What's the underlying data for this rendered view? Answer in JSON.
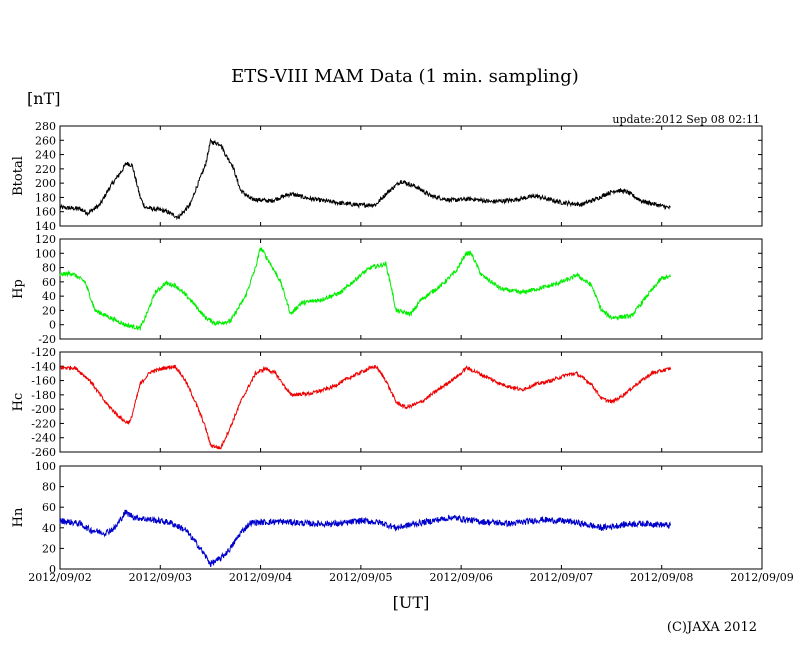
{
  "chart_data": {
    "type": "line",
    "title": "ETS-VIII MAM Data (1 min. sampling)",
    "yunit": "[nT]",
    "update": "update:2012 Sep 08 02:11",
    "xlabel": "[UT]",
    "copyright": "(C)JAXA 2012",
    "x_ticks": [
      "2012/09/02",
      "2012/09/03",
      "2012/09/04",
      "2012/09/05",
      "2012/09/06",
      "2012/09/07",
      "2012/09/08",
      "2012/09/09"
    ],
    "xlim_days": [
      0,
      7
    ],
    "data_end_day": 6.09,
    "panels": [
      {
        "name": "Btotal",
        "color": "#000000",
        "ylim": [
          140,
          280
        ],
        "y_ticks": [
          140,
          160,
          180,
          200,
          220,
          240,
          260,
          280
        ],
        "noise": 3,
        "points": [
          [
            0,
            166
          ],
          [
            0.2,
            164
          ],
          [
            0.28,
            158
          ],
          [
            0.4,
            170
          ],
          [
            0.5,
            195
          ],
          [
            0.62,
            218
          ],
          [
            0.66,
            228
          ],
          [
            0.72,
            225
          ],
          [
            0.8,
            180
          ],
          [
            0.85,
            166
          ],
          [
            1.05,
            161
          ],
          [
            1.18,
            152
          ],
          [
            1.3,
            170
          ],
          [
            1.35,
            190
          ],
          [
            1.45,
            225
          ],
          [
            1.5,
            258
          ],
          [
            1.6,
            255
          ],
          [
            1.65,
            240
          ],
          [
            1.72,
            225
          ],
          [
            1.8,
            190
          ],
          [
            1.9,
            178
          ],
          [
            2.1,
            175
          ],
          [
            2.3,
            185
          ],
          [
            2.5,
            178
          ],
          [
            2.8,
            172
          ],
          [
            3.0,
            169
          ],
          [
            3.15,
            170
          ],
          [
            3.25,
            185
          ],
          [
            3.4,
            203
          ],
          [
            3.55,
            195
          ],
          [
            3.7,
            182
          ],
          [
            3.9,
            176
          ],
          [
            4.1,
            178
          ],
          [
            4.3,
            174
          ],
          [
            4.5,
            176
          ],
          [
            4.7,
            181
          ],
          [
            4.75,
            182
          ],
          [
            4.85,
            178
          ],
          [
            5.0,
            173
          ],
          [
            5.2,
            170
          ],
          [
            5.35,
            178
          ],
          [
            5.45,
            185
          ],
          [
            5.55,
            190
          ],
          [
            5.65,
            188
          ],
          [
            5.8,
            175
          ],
          [
            6.0,
            168
          ],
          [
            6.09,
            165
          ]
        ]
      },
      {
        "name": "Hp",
        "color": "#00ee00",
        "ylim": [
          -20,
          120
        ],
        "y_ticks": [
          -20,
          0,
          20,
          40,
          60,
          80,
          100,
          120
        ],
        "noise": 3,
        "points": [
          [
            0,
            70
          ],
          [
            0.12,
            72
          ],
          [
            0.25,
            60
          ],
          [
            0.35,
            20
          ],
          [
            0.5,
            10
          ],
          [
            0.65,
            0
          ],
          [
            0.8,
            -5
          ],
          [
            0.85,
            10
          ],
          [
            0.95,
            45
          ],
          [
            1.05,
            58
          ],
          [
            1.15,
            55
          ],
          [
            1.3,
            35
          ],
          [
            1.45,
            10
          ],
          [
            1.55,
            2
          ],
          [
            1.7,
            5
          ],
          [
            1.85,
            40
          ],
          [
            1.95,
            80
          ],
          [
            2.0,
            108
          ],
          [
            2.1,
            85
          ],
          [
            2.2,
            60
          ],
          [
            2.3,
            15
          ],
          [
            2.4,
            30
          ],
          [
            2.6,
            35
          ],
          [
            2.8,
            45
          ],
          [
            3.0,
            70
          ],
          [
            3.1,
            80
          ],
          [
            3.25,
            85
          ],
          [
            3.3,
            55
          ],
          [
            3.35,
            20
          ],
          [
            3.5,
            15
          ],
          [
            3.6,
            35
          ],
          [
            3.8,
            55
          ],
          [
            3.95,
            75
          ],
          [
            4.05,
            100
          ],
          [
            4.1,
            100
          ],
          [
            4.2,
            70
          ],
          [
            4.4,
            50
          ],
          [
            4.6,
            45
          ],
          [
            4.9,
            55
          ],
          [
            5.1,
            65
          ],
          [
            5.15,
            70
          ],
          [
            5.3,
            55
          ],
          [
            5.4,
            20
          ],
          [
            5.5,
            10
          ],
          [
            5.7,
            12
          ],
          [
            5.85,
            40
          ],
          [
            6.0,
            65
          ],
          [
            6.09,
            67
          ]
        ]
      },
      {
        "name": "Hc",
        "color": "#ee0000",
        "ylim": [
          -260,
          -120
        ],
        "y_ticks": [
          -260,
          -240,
          -220,
          -200,
          -180,
          -160,
          -140,
          -120
        ],
        "noise": 2.5,
        "points": [
          [
            0,
            -142
          ],
          [
            0.15,
            -142
          ],
          [
            0.3,
            -160
          ],
          [
            0.45,
            -190
          ],
          [
            0.55,
            -205
          ],
          [
            0.65,
            -218
          ],
          [
            0.7,
            -218
          ],
          [
            0.8,
            -165
          ],
          [
            0.9,
            -148
          ],
          [
            1.05,
            -142
          ],
          [
            1.15,
            -140
          ],
          [
            1.25,
            -160
          ],
          [
            1.35,
            -190
          ],
          [
            1.45,
            -225
          ],
          [
            1.5,
            -250
          ],
          [
            1.6,
            -255
          ],
          [
            1.7,
            -225
          ],
          [
            1.8,
            -190
          ],
          [
            1.95,
            -150
          ],
          [
            2.05,
            -143
          ],
          [
            2.15,
            -150
          ],
          [
            2.25,
            -170
          ],
          [
            2.3,
            -180
          ],
          [
            2.5,
            -178
          ],
          [
            2.7,
            -170
          ],
          [
            2.9,
            -155
          ],
          [
            3.05,
            -145
          ],
          [
            3.15,
            -140
          ],
          [
            3.25,
            -160
          ],
          [
            3.35,
            -190
          ],
          [
            3.45,
            -198
          ],
          [
            3.6,
            -190
          ],
          [
            3.8,
            -170
          ],
          [
            4.0,
            -150
          ],
          [
            4.05,
            -142
          ],
          [
            4.15,
            -148
          ],
          [
            4.4,
            -165
          ],
          [
            4.6,
            -173
          ],
          [
            4.75,
            -165
          ],
          [
            4.9,
            -160
          ],
          [
            5.05,
            -152
          ],
          [
            5.15,
            -150
          ],
          [
            5.3,
            -165
          ],
          [
            5.4,
            -185
          ],
          [
            5.5,
            -190
          ],
          [
            5.6,
            -182
          ],
          [
            5.75,
            -165
          ],
          [
            5.9,
            -150
          ],
          [
            6.09,
            -143
          ]
        ]
      },
      {
        "name": "Hn",
        "color": "#0000cc",
        "ylim": [
          0,
          100
        ],
        "y_ticks": [
          0,
          20,
          40,
          60,
          80,
          100
        ],
        "noise": 3,
        "points": [
          [
            0,
            47
          ],
          [
            0.2,
            44
          ],
          [
            0.3,
            38
          ],
          [
            0.45,
            35
          ],
          [
            0.55,
            40
          ],
          [
            0.65,
            55
          ],
          [
            0.75,
            50
          ],
          [
            0.9,
            48
          ],
          [
            1.1,
            45
          ],
          [
            1.25,
            38
          ],
          [
            1.4,
            20
          ],
          [
            1.5,
            5
          ],
          [
            1.6,
            10
          ],
          [
            1.7,
            20
          ],
          [
            1.8,
            35
          ],
          [
            1.9,
            45
          ],
          [
            2.2,
            46
          ],
          [
            2.5,
            44
          ],
          [
            2.8,
            44
          ],
          [
            3.0,
            47
          ],
          [
            3.2,
            45
          ],
          [
            3.35,
            40
          ],
          [
            3.55,
            44
          ],
          [
            3.9,
            50
          ],
          [
            4.2,
            46
          ],
          [
            4.5,
            44
          ],
          [
            4.8,
            48
          ],
          [
            5.1,
            46
          ],
          [
            5.4,
            40
          ],
          [
            5.7,
            44
          ],
          [
            5.9,
            44
          ],
          [
            6.09,
            42
          ]
        ]
      }
    ]
  }
}
